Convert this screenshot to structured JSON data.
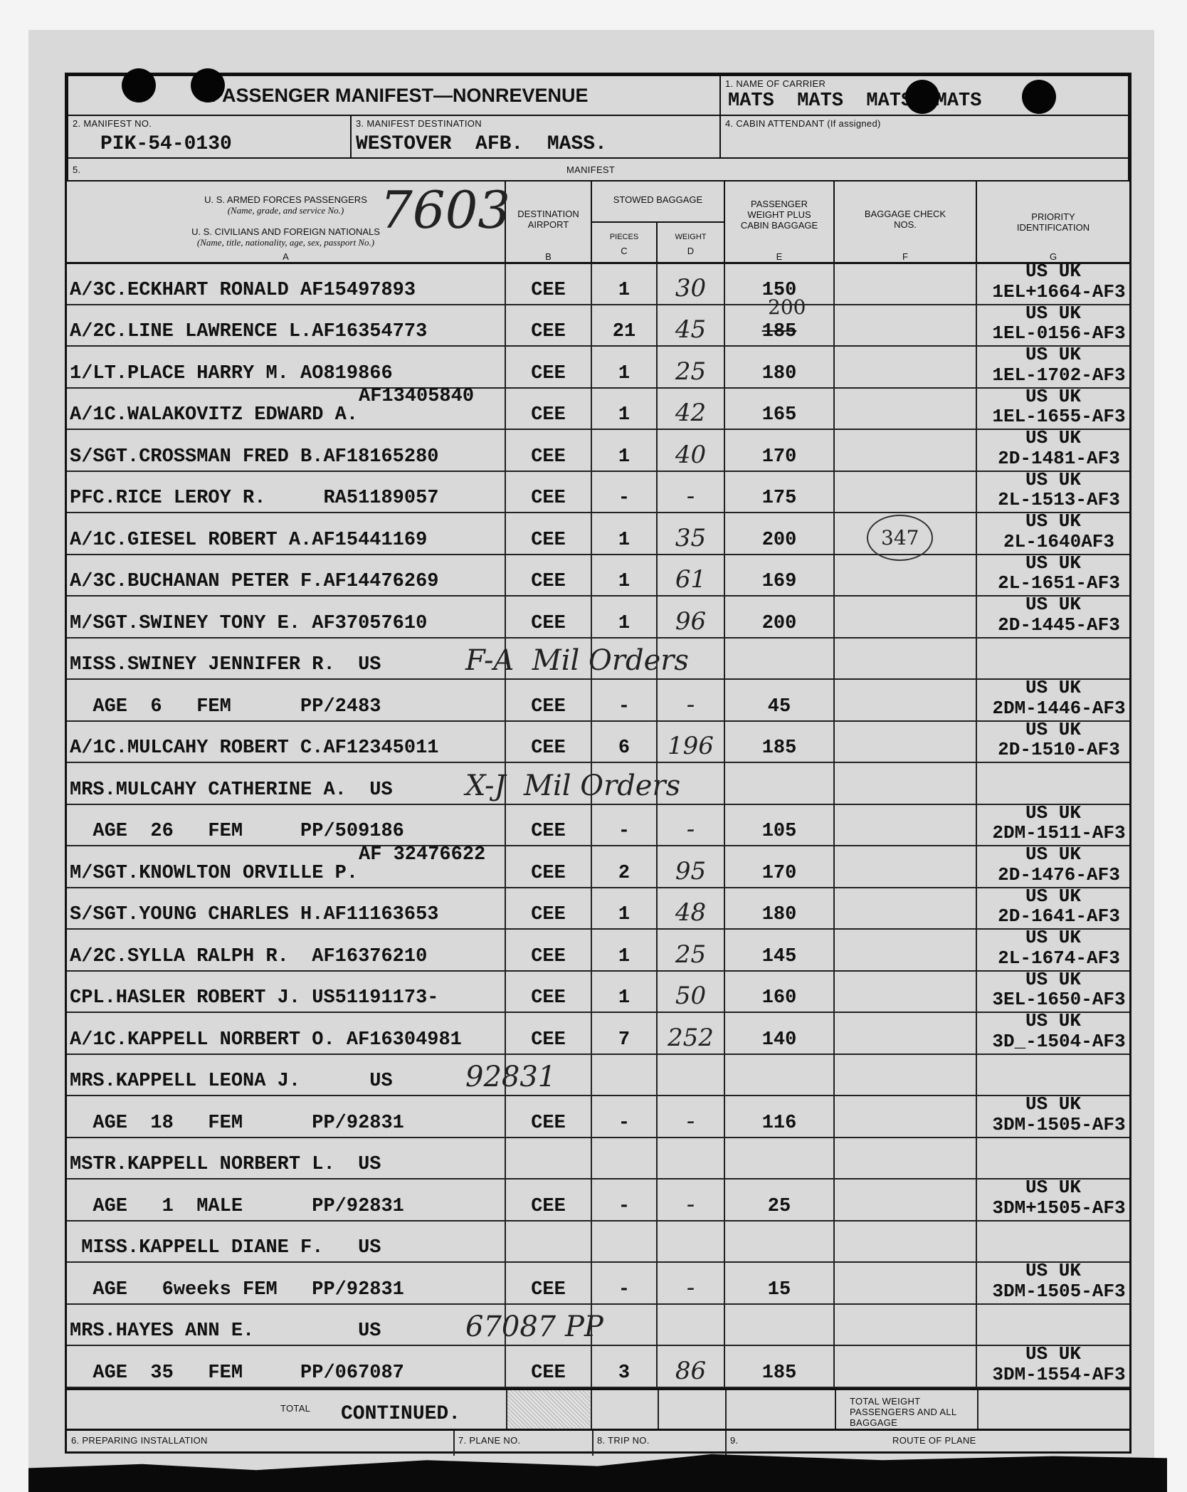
{
  "form": {
    "title": "PASSENGER MANIFEST—NONREVENUE",
    "carrier_label": "1. NAME OF CARRIER",
    "carrier_value": "MATS  MATS  MATS  MATS",
    "manifest_no_label": "2. MANIFEST NO.",
    "manifest_no": "PIK-54-0130",
    "destination_label": "3. MANIFEST DESTINATION",
    "destination": "WESTOVER  AFB.  MASS.",
    "attendant_label": "4. CABIN ATTENDANT (If assigned)",
    "row5_label": "5.",
    "row5_title": "MANIFEST",
    "handwritten_number": "7603"
  },
  "columns": {
    "a_line1": "U. S. ARMED FORCES PASSENGERS",
    "a_line2": "(Name, grade, and service No.)",
    "a_line3": "U. S. CIVILIANS AND FOREIGN NATIONALS",
    "a_line4": "(Name, title, nationality, age, sex, passport No.)",
    "a_letter": "A",
    "b": "DESTINATION AIRPORT",
    "b_letter": "B",
    "stowed": "STOWED BAGGAGE",
    "c": "PIECES",
    "c_letter": "C",
    "d": "WEIGHT",
    "d_letter": "D",
    "e": "PASSENGER WEIGHT PLUS CABIN BAGGAGE",
    "e_letter": "E",
    "f": "BAGGAGE CHECK NOS.",
    "f_letter": "F",
    "g": "PRIORITY IDENTIFICATION",
    "g_letter": "G"
  },
  "rows": [
    {
      "name": "A/3C.ECKHART RONALD AF15497893",
      "dest": "CEE",
      "pieces": "1",
      "weight": "30",
      "pwt": "150",
      "check": "",
      "prio_top": "US UK",
      "prio": "1EL+1664-AF3"
    },
    {
      "name": "A/2C.LINE LAWRENCE L.AF16354773",
      "dest": "CEE",
      "pieces": "21",
      "weight": "45",
      "pwt": "185",
      "pwt_fix": "200",
      "check": "",
      "prio_top": "US UK",
      "prio": "1EL-0156-AF3"
    },
    {
      "name": "1/LT.PLACE HARRY M. AO819866",
      "dest": "CEE",
      "pieces": "1",
      "weight": "25",
      "pwt": "180",
      "check": "",
      "prio_top": "US UK",
      "prio": "1EL-1702-AF3"
    },
    {
      "name": "A/1C.WALAKOVITZ EDWARD A.",
      "above": "AF13405840",
      "dest": "CEE",
      "pieces": "1",
      "weight": "42",
      "pwt": "165",
      "check": "",
      "prio_top": "US UK",
      "prio": "1EL-1655-AF3"
    },
    {
      "name": "S/SGT.CROSSMAN FRED B.AF18165280",
      "dest": "CEE",
      "pieces": "1",
      "weight": "40",
      "pwt": "170",
      "check": "",
      "prio_top": "US UK",
      "prio": "2D-1481-AF3"
    },
    {
      "name": "PFC.RICE LEROY R.     RA51189057",
      "dest": "CEE",
      "pieces": "-",
      "weight": "-",
      "pwt": "175",
      "check": "",
      "prio_top": "US UK",
      "prio": "2L-1513-AF3"
    },
    {
      "name": "A/1C.GIESEL ROBERT A.AF15441169",
      "dest": "CEE",
      "pieces": "1",
      "weight": "35",
      "pwt": "200",
      "check": "347",
      "prio_top": "US UK",
      "prio": "2L-1640AF3"
    },
    {
      "name": "A/3C.BUCHANAN PETER F.AF14476269",
      "dest": "CEE",
      "pieces": "1",
      "weight": "61",
      "pwt": "169",
      "check": "",
      "prio_top": "US UK",
      "prio": "2L-1651-AF3"
    },
    {
      "name": "M/SGT.SWINEY TONY E. AF37057610",
      "dest": "CEE",
      "pieces": "1",
      "weight": "96",
      "pwt": "200",
      "check": "",
      "prio_top": "US UK",
      "prio": "2D-1445-AF3"
    },
    {
      "name": "MISS.SWINEY JENNIFER R.  US",
      "note": "F-A  Mil Orders"
    },
    {
      "name": "  AGE  6   FEM      PP/2483",
      "dest": "CEE",
      "pieces": "-",
      "weight": "-",
      "pwt": "45",
      "check": "",
      "prio_top": "US UK",
      "prio": "2DM-1446-AF3"
    },
    {
      "name": "A/1C.MULCAHY ROBERT C.AF12345011",
      "dest": "CEE",
      "pieces": "6",
      "weight": "196",
      "pwt": "185",
      "check": "",
      "prio_top": "US UK",
      "prio": "2D-1510-AF3"
    },
    {
      "name": "MRS.MULCAHY CATHERINE A.  US",
      "note": "X-J  Mil Orders"
    },
    {
      "name": "  AGE  26   FEM     PP/509186",
      "dest": "CEE",
      "pieces": "-",
      "weight": "-",
      "pwt": "105",
      "check": "",
      "prio_top": "US UK",
      "prio": "2DM-1511-AF3"
    },
    {
      "name": "M/SGT.KNOWLTON ORVILLE P.",
      "above": "AF 32476622",
      "dest": "CEE",
      "pieces": "2",
      "weight": "95",
      "pwt": "170",
      "check": "",
      "prio_top": "US UK",
      "prio": "2D-1476-AF3"
    },
    {
      "name": "S/SGT.YOUNG CHARLES H.AF11163653",
      "dest": "CEE",
      "pieces": "1",
      "weight": "48",
      "pwt": "180",
      "check": "",
      "prio_top": "US UK",
      "prio": "2D-1641-AF3"
    },
    {
      "name": "A/2C.SYLLA RALPH R.  AF16376210",
      "dest": "CEE",
      "pieces": "1",
      "weight": "25",
      "pwt": "145",
      "check": "",
      "prio_top": "US UK",
      "prio": "2L-1674-AF3"
    },
    {
      "name": "CPL.HASLER ROBERT J. US51191173-",
      "dest": "CEE",
      "pieces": "1",
      "weight": "50",
      "pwt": "160",
      "check": "",
      "prio_top": "US UK",
      "prio": "3EL-1650-AF3"
    },
    {
      "name": "A/1C.KAPPELL NORBERT O. AF16304981",
      "dest": "CEE",
      "pieces": "7",
      "weight": "252",
      "pwt": "140",
      "check": "",
      "prio_top": "US UK",
      "prio": "3D_-1504-AF3"
    },
    {
      "name": "MRS.KAPPELL LEONA J.      US",
      "note": "92831"
    },
    {
      "name": "  AGE  18   FEM      PP/92831",
      "dest": "CEE",
      "pieces": "-",
      "weight": "-",
      "pwt": "116",
      "check": "",
      "prio_top": "US UK",
      "prio": "3DM-1505-AF3"
    },
    {
      "name": "MSTR.KAPPELL NORBERT L.  US"
    },
    {
      "name": "  AGE   1  MALE      PP/92831",
      "dest": "CEE",
      "pieces": "-",
      "weight": "-",
      "pwt": "25",
      "check": "",
      "prio_top": "US UK",
      "prio": "3DM+1505-AF3"
    },
    {
      "name": " MISS.KAPPELL DIANE F.   US"
    },
    {
      "name": "  AGE   6weeks FEM   PP/92831",
      "dest": "CEE",
      "pieces": "-",
      "weight": "-",
      "pwt": "15",
      "check": "",
      "prio_top": "US UK",
      "prio": "3DM-1505-AF3"
    },
    {
      "name": "MRS.HAYES ANN E.         US",
      "note": "67087 PP"
    },
    {
      "name": "  AGE  35   FEM     PP/067087",
      "dest": "CEE",
      "pieces": "3",
      "weight": "86",
      "pwt": "185",
      "check": "",
      "prio_top": "US UK",
      "prio": "3DM-1554-AF3"
    }
  ],
  "totals": {
    "total_label": "TOTAL",
    "total_value": "CONTINUED.",
    "total_weight_label": "TOTAL WEIGHT PASSENGERS AND ALL BAGGAGE"
  },
  "footer": {
    "installation": "6. PREPARING INSTALLATION",
    "plane": "7. PLANE NO.",
    "trip": "8. TRIP NO.",
    "nine": "9.",
    "route": "ROUTE OF PLANE"
  }
}
